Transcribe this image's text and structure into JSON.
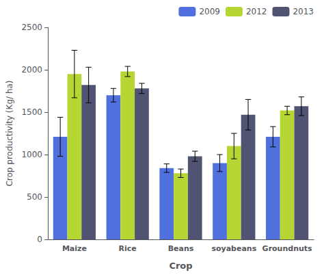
{
  "chart_data": {
    "type": "bar",
    "categories": [
      "Maize",
      "Rice",
      "Beans",
      "soyabeans",
      "Groundnuts"
    ],
    "series": [
      {
        "name": "2009",
        "values": [
          1210,
          1700,
          840,
          900,
          1210
        ],
        "errors": [
          230,
          80,
          50,
          100,
          120
        ]
      },
      {
        "name": "2012",
        "values": [
          1950,
          1980,
          780,
          1100,
          1520
        ],
        "errors": [
          280,
          60,
          50,
          150,
          50
        ]
      },
      {
        "name": "2013",
        "values": [
          1820,
          1780,
          980,
          1470,
          1570
        ],
        "errors": [
          210,
          60,
          60,
          180,
          110
        ]
      }
    ],
    "xlabel": "Crop",
    "ylabel": "Crop productivity (Kg/ ha)",
    "ylim": [
      0,
      2500
    ],
    "yticks": [
      0,
      500,
      1000,
      1500,
      2000,
      2500
    ],
    "grid": false,
    "legend": "upper right"
  }
}
